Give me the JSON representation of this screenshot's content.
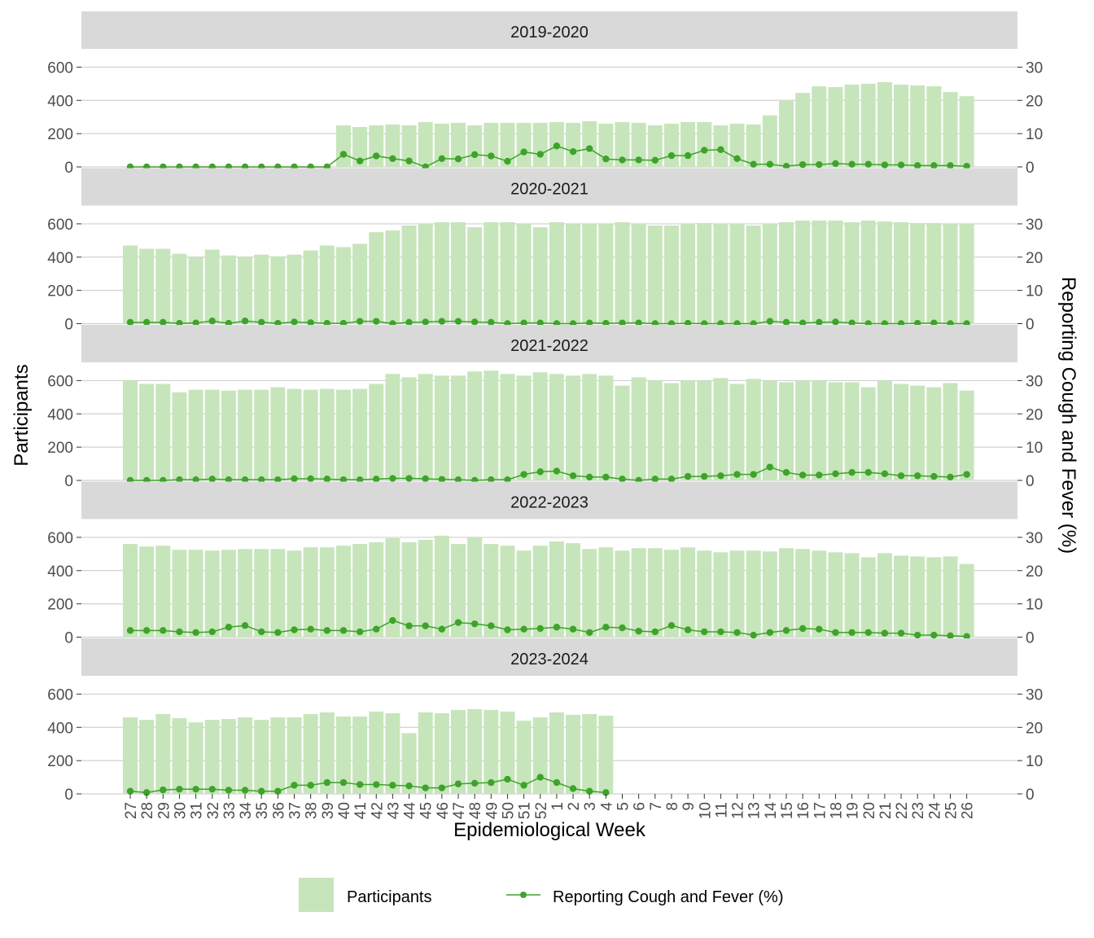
{
  "chart_data": {
    "type": "bar",
    "xlabel": "Epidemiological Week",
    "ylabel": "Participants",
    "y2label": "Reporting Cough and Fever (%)",
    "ylim": [
      0,
      700
    ],
    "y2lim": [
      0,
      35
    ],
    "yticks": [
      0,
      200,
      400,
      600
    ],
    "y2ticks": [
      0,
      10,
      20,
      30
    ],
    "grid": true,
    "legend_position": "bottom",
    "colors": {
      "bars": "#c7e5bb",
      "line": "#3ea32a",
      "strip": "#d9d9d9",
      "grid": "#d0d0d0"
    },
    "categories": [
      "27",
      "28",
      "29",
      "30",
      "31",
      "32",
      "33",
      "34",
      "35",
      "36",
      "37",
      "38",
      "39",
      "40",
      "41",
      "42",
      "43",
      "44",
      "45",
      "46",
      "47",
      "48",
      "49",
      "50",
      "51",
      "52",
      "1",
      "2",
      "3",
      "4",
      "5",
      "6",
      "7",
      "8",
      "9",
      "10",
      "11",
      "12",
      "13",
      "14",
      "15",
      "16",
      "17",
      "18",
      "19",
      "20",
      "21",
      "22",
      "23",
      "24",
      "25",
      "26"
    ],
    "legend": [
      "Participants",
      "Reporting Cough and Fever (%)"
    ],
    "panels": [
      {
        "title": "2019-2020",
        "participants": [
          null,
          null,
          null,
          null,
          null,
          null,
          null,
          null,
          null,
          null,
          null,
          null,
          null,
          250,
          240,
          250,
          255,
          250,
          270,
          260,
          265,
          250,
          265,
          265,
          265,
          265,
          270,
          265,
          275,
          260,
          270,
          265,
          250,
          260,
          270,
          270,
          250,
          260,
          255,
          310,
          400,
          445,
          485,
          480,
          495,
          500,
          510,
          495,
          490,
          485,
          450,
          425
        ],
        "percent": [
          0,
          0,
          0,
          0,
          0,
          0,
          0,
          0,
          0,
          0,
          0,
          0,
          0,
          3.8,
          1.8,
          3.3,
          2.5,
          1.8,
          0,
          2.5,
          2.4,
          3.7,
          3.3,
          1.7,
          4.5,
          3.8,
          6.3,
          4.6,
          5.5,
          2.4,
          2.1,
          2.1,
          2.0,
          3.4,
          3.4,
          5.0,
          5.2,
          2.5,
          0.8,
          0.8,
          0.2,
          0.7,
          0.7,
          1.0,
          0.8,
          0.8,
          0.6,
          0.6,
          0.4,
          0.4,
          0.4,
          0.2
        ]
      },
      {
        "title": "2020-2021",
        "participants": [
          470,
          450,
          450,
          420,
          400,
          445,
          410,
          400,
          415,
          405,
          415,
          440,
          470,
          460,
          480,
          550,
          560,
          590,
          600,
          610,
          610,
          580,
          610,
          610,
          600,
          580,
          610,
          600,
          600,
          600,
          610,
          600,
          590,
          590,
          600,
          605,
          600,
          600,
          590,
          600,
          610,
          620,
          620,
          620,
          610,
          620,
          615,
          610,
          605,
          605,
          600,
          600
        ],
        "percent": [
          0.4,
          0.4,
          0.4,
          0.1,
          0.2,
          0.8,
          0.1,
          0.8,
          0.4,
          0.1,
          0.5,
          0.3,
          0.1,
          0.1,
          0.7,
          0.7,
          0,
          0.4,
          0.5,
          0.7,
          0.7,
          0.5,
          0.4,
          0,
          0.2,
          0.2,
          0,
          0,
          0.2,
          0.1,
          0.2,
          0.2,
          0,
          0,
          0.1,
          0,
          0,
          0,
          0,
          0.7,
          0.4,
          0.2,
          0.4,
          0.5,
          0.2,
          0,
          0,
          0,
          0.1,
          0.2,
          0,
          0
        ]
      },
      {
        "title": "2021-2022",
        "participants": [
          600,
          580,
          580,
          530,
          545,
          545,
          540,
          545,
          545,
          560,
          550,
          545,
          550,
          545,
          550,
          580,
          640,
          620,
          640,
          630,
          630,
          655,
          660,
          640,
          630,
          650,
          640,
          630,
          640,
          630,
          570,
          620,
          600,
          585,
          600,
          600,
          615,
          580,
          610,
          600,
          590,
          600,
          600,
          590,
          590,
          560,
          600,
          580,
          570,
          560,
          585,
          540
        ],
        "percent": [
          0,
          0,
          0,
          0.2,
          0.2,
          0.4,
          0.2,
          0.2,
          0.2,
          0.2,
          0.5,
          0.5,
          0.4,
          0.2,
          0.2,
          0.4,
          0.6,
          0.6,
          0.5,
          0.3,
          0.2,
          0,
          0.2,
          0.2,
          1.8,
          2.6,
          2.8,
          1.4,
          1.0,
          1.0,
          0.4,
          0,
          0.4,
          0.4,
          1.2,
          1.2,
          1.4,
          1.8,
          1.8,
          4.0,
          2.4,
          1.6,
          1.6,
          2.0,
          2.4,
          2.4,
          2.0,
          1.4,
          1.4,
          1.2,
          1.0,
          1.8
        ]
      },
      {
        "title": "2022-2023",
        "participants": [
          560,
          545,
          550,
          525,
          525,
          520,
          525,
          530,
          530,
          530,
          520,
          540,
          540,
          550,
          560,
          570,
          595,
          570,
          585,
          610,
          560,
          600,
          560,
          550,
          520,
          550,
          575,
          565,
          530,
          540,
          520,
          535,
          535,
          525,
          540,
          520,
          510,
          520,
          520,
          515,
          535,
          530,
          520,
          510,
          505,
          480,
          505,
          490,
          485,
          480,
          485,
          440
        ],
        "percent": [
          2.0,
          2.0,
          2.0,
          1.6,
          1.4,
          1.6,
          3.0,
          3.5,
          1.6,
          1.4,
          2.2,
          2.4,
          2.0,
          2.0,
          1.6,
          2.4,
          5.0,
          3.4,
          3.4,
          2.4,
          4.4,
          4.0,
          3.4,
          2.2,
          2.4,
          2.6,
          3.0,
          2.4,
          1.4,
          3.0,
          2.8,
          1.8,
          1.6,
          3.5,
          2.2,
          1.6,
          1.6,
          1.4,
          0.6,
          1.4,
          2.0,
          2.6,
          2.4,
          1.4,
          1.4,
          1.4,
          1.2,
          1.2,
          0.6,
          0.6,
          0.4,
          0.2
        ]
      },
      {
        "title": "2023-2024",
        "participants": [
          460,
          445,
          480,
          455,
          430,
          445,
          450,
          460,
          445,
          460,
          460,
          480,
          490,
          465,
          465,
          495,
          485,
          365,
          490,
          485,
          505,
          510,
          505,
          495,
          440,
          460,
          490,
          475,
          480,
          470,
          null,
          null,
          null,
          null,
          null,
          null,
          null,
          null,
          null,
          null,
          null,
          null,
          null,
          null,
          null,
          null,
          null,
          null,
          null,
          null,
          null,
          null
        ],
        "percent": [
          0.8,
          0.4,
          1.2,
          1.4,
          1.4,
          1.4,
          1.1,
          1.1,
          0.8,
          0.8,
          2.6,
          2.6,
          3.4,
          3.4,
          2.8,
          2.8,
          2.6,
          2.4,
          1.8,
          1.8,
          3.0,
          3.2,
          3.4,
          4.4,
          2.6,
          5.0,
          3.4,
          1.6,
          0.8,
          0.4,
          null,
          null,
          null,
          null,
          null,
          null,
          null,
          null,
          null,
          null,
          null,
          null,
          null,
          null,
          null,
          null,
          null,
          null,
          null,
          null,
          null,
          null
        ]
      }
    ]
  }
}
